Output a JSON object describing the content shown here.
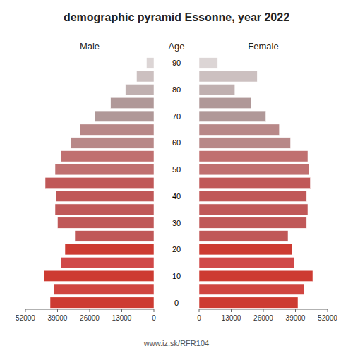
{
  "chart_data": {
    "type": "bar",
    "orientation": "horizontal",
    "title": "demographic pyramid Essonne, year 2022",
    "ylabel": "Age",
    "annotations": [
      "www.iz.sk/RFR104"
    ],
    "categories": [
      "0",
      null,
      "10",
      null,
      "20",
      null,
      "30",
      null,
      "40",
      null,
      "50",
      null,
      "60",
      null,
      "70",
      null,
      "80",
      null,
      "90"
    ],
    "series": [
      {
        "name": "Male",
        "values": [
          42000,
          40500,
          44500,
          37500,
          36000,
          32000,
          39000,
          40000,
          39500,
          44000,
          40000,
          37500,
          33500,
          30000,
          24000,
          17500,
          11500,
          7000,
          3000
        ],
        "colors": [
          "#cd3b32",
          "#d04540",
          "#cd3b32",
          "#d04848",
          "#cd3b32",
          "#c05858",
          "#c05858",
          "#c05858",
          "#c05858",
          "#c05858",
          "#c07070",
          "#c07070",
          "#b88888",
          "#b88888",
          "#b09898",
          "#b09898",
          "#c0b0b0",
          "#ccc0c0",
          "#dcd5d5"
        ]
      },
      {
        "name": "Female",
        "values": [
          40000,
          42500,
          46000,
          38500,
          37500,
          36000,
          43500,
          44000,
          43500,
          45000,
          44500,
          44000,
          37000,
          32500,
          27000,
          21000,
          14500,
          23500,
          7500
        ],
        "colors": [
          "#cd3b32",
          "#d04540",
          "#cd3b32",
          "#d04848",
          "#cd3b32",
          "#c05858",
          "#c05858",
          "#c05858",
          "#c05858",
          "#c05858",
          "#c07070",
          "#c07070",
          "#b88888",
          "#b88888",
          "#b09898",
          "#b09898",
          "#c0b0b0",
          "#ccc0c0",
          "#dcd5d5"
        ]
      }
    ],
    "xlim": [
      0,
      52000
    ],
    "xticks": [
      0,
      13000,
      26000,
      39000,
      52000
    ],
    "grid": false
  }
}
